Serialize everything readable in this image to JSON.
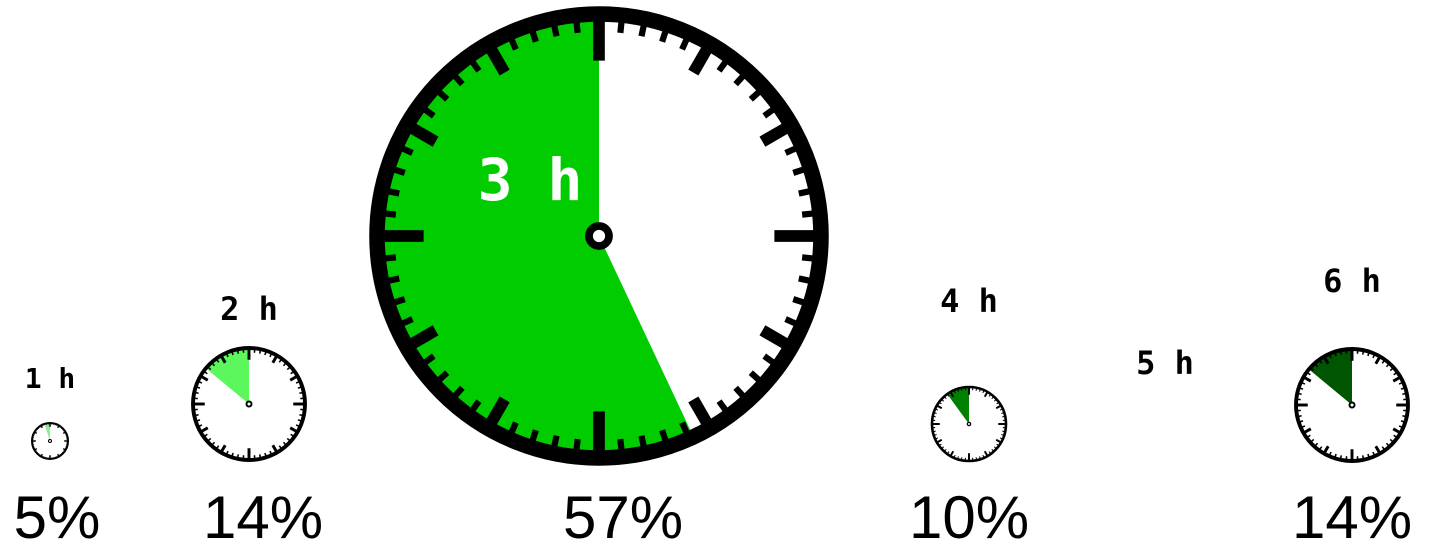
{
  "chart_data": {
    "type": "pie",
    "categories": [
      "1 h",
      "2 h",
      "3 h",
      "4 h",
      "5 h",
      "6 h"
    ],
    "values": [
      5,
      14,
      57,
      10,
      0,
      14
    ],
    "labels": [
      "5%",
      "14%",
      "57%",
      "10%",
      "",
      "14%"
    ],
    "colors": [
      "#90ee90",
      "#5cf75c",
      "#00cc00",
      "#008000",
      "#006400",
      "#005500"
    ]
  }
}
